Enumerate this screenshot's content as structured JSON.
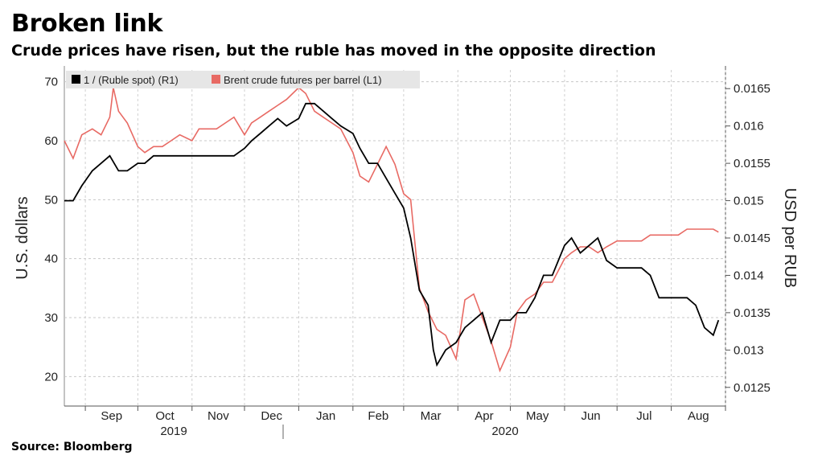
{
  "header": {
    "title": "Broken link",
    "subtitle": "Crude prices have risen, but the ruble has moved in the opposite direction"
  },
  "footer": {
    "source": "Source: Bloomberg"
  },
  "chart_data": {
    "type": "line",
    "ylabel_left": "U.S. dollars",
    "ylabel_right": "USD per RUB",
    "ylim_left": [
      15,
      72
    ],
    "ylim_right": [
      0.01225,
      0.01675
    ],
    "yticks_left": [
      20,
      30,
      40,
      50,
      60,
      70
    ],
    "yticks_right": [
      0.0125,
      0.013,
      0.0135,
      0.014,
      0.0145,
      0.015,
      0.0155,
      0.016,
      0.0165
    ],
    "ytick_labels_right": [
      "0.0125",
      "0.013",
      "0.0135",
      "0.014",
      "0.0145",
      "0.015",
      "0.0155",
      "0.016",
      "0.0165"
    ],
    "x_months": [
      "Sep",
      "Oct",
      "Nov",
      "Dec",
      "Jan",
      "Feb",
      "Mar",
      "Apr",
      "May",
      "Jun",
      "Jul",
      "Aug"
    ],
    "x_years": [
      "2019",
      "2020"
    ],
    "legend": [
      "1 / (Ruble spot) (R1)",
      "Brent crude futures per barrel (L1)"
    ],
    "legend_placement": "top-left",
    "grid": "dashed-horizontal-and-vertical",
    "colors": {
      "ruble": "#000000",
      "brent": "#e86a64"
    },
    "series": [
      {
        "name": "1 / (Ruble spot) (R1)",
        "axis": "right",
        "x": [
          "2019-08-20",
          "2019-08-25",
          "2019-08-30",
          "2019-09-05",
          "2019-09-10",
          "2019-09-15",
          "2019-09-20",
          "2019-09-25",
          "2019-10-01",
          "2019-10-05",
          "2019-10-10",
          "2019-10-15",
          "2019-10-20",
          "2019-10-25",
          "2019-11-01",
          "2019-11-05",
          "2019-11-10",
          "2019-11-15",
          "2019-11-20",
          "2019-11-25",
          "2019-12-01",
          "2019-12-05",
          "2019-12-10",
          "2019-12-15",
          "2019-12-20",
          "2019-12-25",
          "2020-01-01",
          "2020-01-05",
          "2020-01-10",
          "2020-01-15",
          "2020-01-20",
          "2020-01-25",
          "2020-02-01",
          "2020-02-05",
          "2020-02-10",
          "2020-02-15",
          "2020-02-20",
          "2020-02-25",
          "2020-03-01",
          "2020-03-05",
          "2020-03-10",
          "2020-03-15",
          "2020-03-18",
          "2020-03-20",
          "2020-03-25",
          "2020-03-31",
          "2020-04-05",
          "2020-04-10",
          "2020-04-15",
          "2020-04-20",
          "2020-04-25",
          "2020-05-01",
          "2020-05-05",
          "2020-05-10",
          "2020-05-15",
          "2020-05-20",
          "2020-05-25",
          "2020-06-01",
          "2020-06-05",
          "2020-06-10",
          "2020-06-15",
          "2020-06-20",
          "2020-06-25",
          "2020-07-01",
          "2020-07-05",
          "2020-07-10",
          "2020-07-15",
          "2020-07-20",
          "2020-07-25",
          "2020-08-01",
          "2020-08-05",
          "2020-08-10",
          "2020-08-15",
          "2020-08-20",
          "2020-08-25",
          "2020-08-28"
        ],
        "values": [
          0.015,
          0.015,
          0.0152,
          0.0154,
          0.0155,
          0.0156,
          0.0154,
          0.0154,
          0.0155,
          0.0155,
          0.0156,
          0.0156,
          0.0156,
          0.0156,
          0.0156,
          0.0156,
          0.0156,
          0.0156,
          0.0156,
          0.0156,
          0.0157,
          0.0158,
          0.0159,
          0.016,
          0.0161,
          0.016,
          0.0161,
          0.0163,
          0.0163,
          0.0162,
          0.0161,
          0.016,
          0.0159,
          0.0157,
          0.0155,
          0.0155,
          0.0153,
          0.0151,
          0.0149,
          0.0145,
          0.0138,
          0.0136,
          0.013,
          0.0128,
          0.013,
          0.0131,
          0.0133,
          0.0134,
          0.0135,
          0.0131,
          0.0134,
          0.0134,
          0.0135,
          0.0135,
          0.0137,
          0.014,
          0.014,
          0.0144,
          0.0145,
          0.0143,
          0.0144,
          0.0145,
          0.0142,
          0.0141,
          0.0141,
          0.0141,
          0.0141,
          0.014,
          0.0137,
          0.0137,
          0.0137,
          0.0137,
          0.0136,
          0.0133,
          0.0132,
          0.0134
        ]
      },
      {
        "name": "Brent crude futures per barrel (L1)",
        "axis": "left",
        "x": [
          "2019-08-20",
          "2019-08-25",
          "2019-08-30",
          "2019-09-05",
          "2019-09-10",
          "2019-09-15",
          "2019-09-17",
          "2019-09-20",
          "2019-09-25",
          "2019-10-01",
          "2019-10-05",
          "2019-10-10",
          "2019-10-15",
          "2019-10-20",
          "2019-10-25",
          "2019-11-01",
          "2019-11-05",
          "2019-11-10",
          "2019-11-15",
          "2019-11-20",
          "2019-11-25",
          "2019-12-01",
          "2019-12-05",
          "2019-12-10",
          "2019-12-15",
          "2019-12-20",
          "2019-12-25",
          "2020-01-01",
          "2020-01-05",
          "2020-01-10",
          "2020-01-15",
          "2020-01-20",
          "2020-01-25",
          "2020-02-01",
          "2020-02-05",
          "2020-02-10",
          "2020-02-15",
          "2020-02-20",
          "2020-02-25",
          "2020-03-01",
          "2020-03-05",
          "2020-03-10",
          "2020-03-15",
          "2020-03-20",
          "2020-03-25",
          "2020-03-31",
          "2020-04-05",
          "2020-04-10",
          "2020-04-15",
          "2020-04-20",
          "2020-04-25",
          "2020-05-01",
          "2020-05-05",
          "2020-05-10",
          "2020-05-15",
          "2020-05-20",
          "2020-05-25",
          "2020-06-01",
          "2020-06-05",
          "2020-06-10",
          "2020-06-15",
          "2020-06-20",
          "2020-06-25",
          "2020-07-01",
          "2020-07-05",
          "2020-07-10",
          "2020-07-15",
          "2020-07-20",
          "2020-07-25",
          "2020-08-01",
          "2020-08-05",
          "2020-08-10",
          "2020-08-15",
          "2020-08-20",
          "2020-08-25",
          "2020-08-28"
        ],
        "values": [
          60,
          57,
          61,
          62,
          61,
          64,
          69,
          65,
          63,
          59,
          58,
          59,
          59,
          60,
          61,
          60,
          62,
          62,
          62,
          63,
          64,
          61,
          63,
          64,
          65,
          66,
          67,
          69,
          68,
          65,
          64,
          63,
          62,
          58,
          54,
          53,
          56,
          59,
          56,
          51,
          50,
          35,
          31,
          28,
          27,
          23,
          33,
          34,
          30,
          26,
          21,
          25,
          31,
          33,
          34,
          36,
          36,
          40,
          41,
          42,
          42,
          41,
          42,
          43,
          43,
          43,
          43,
          44,
          44,
          44,
          44,
          45,
          45,
          45,
          45,
          44.5
        ]
      }
    ]
  }
}
